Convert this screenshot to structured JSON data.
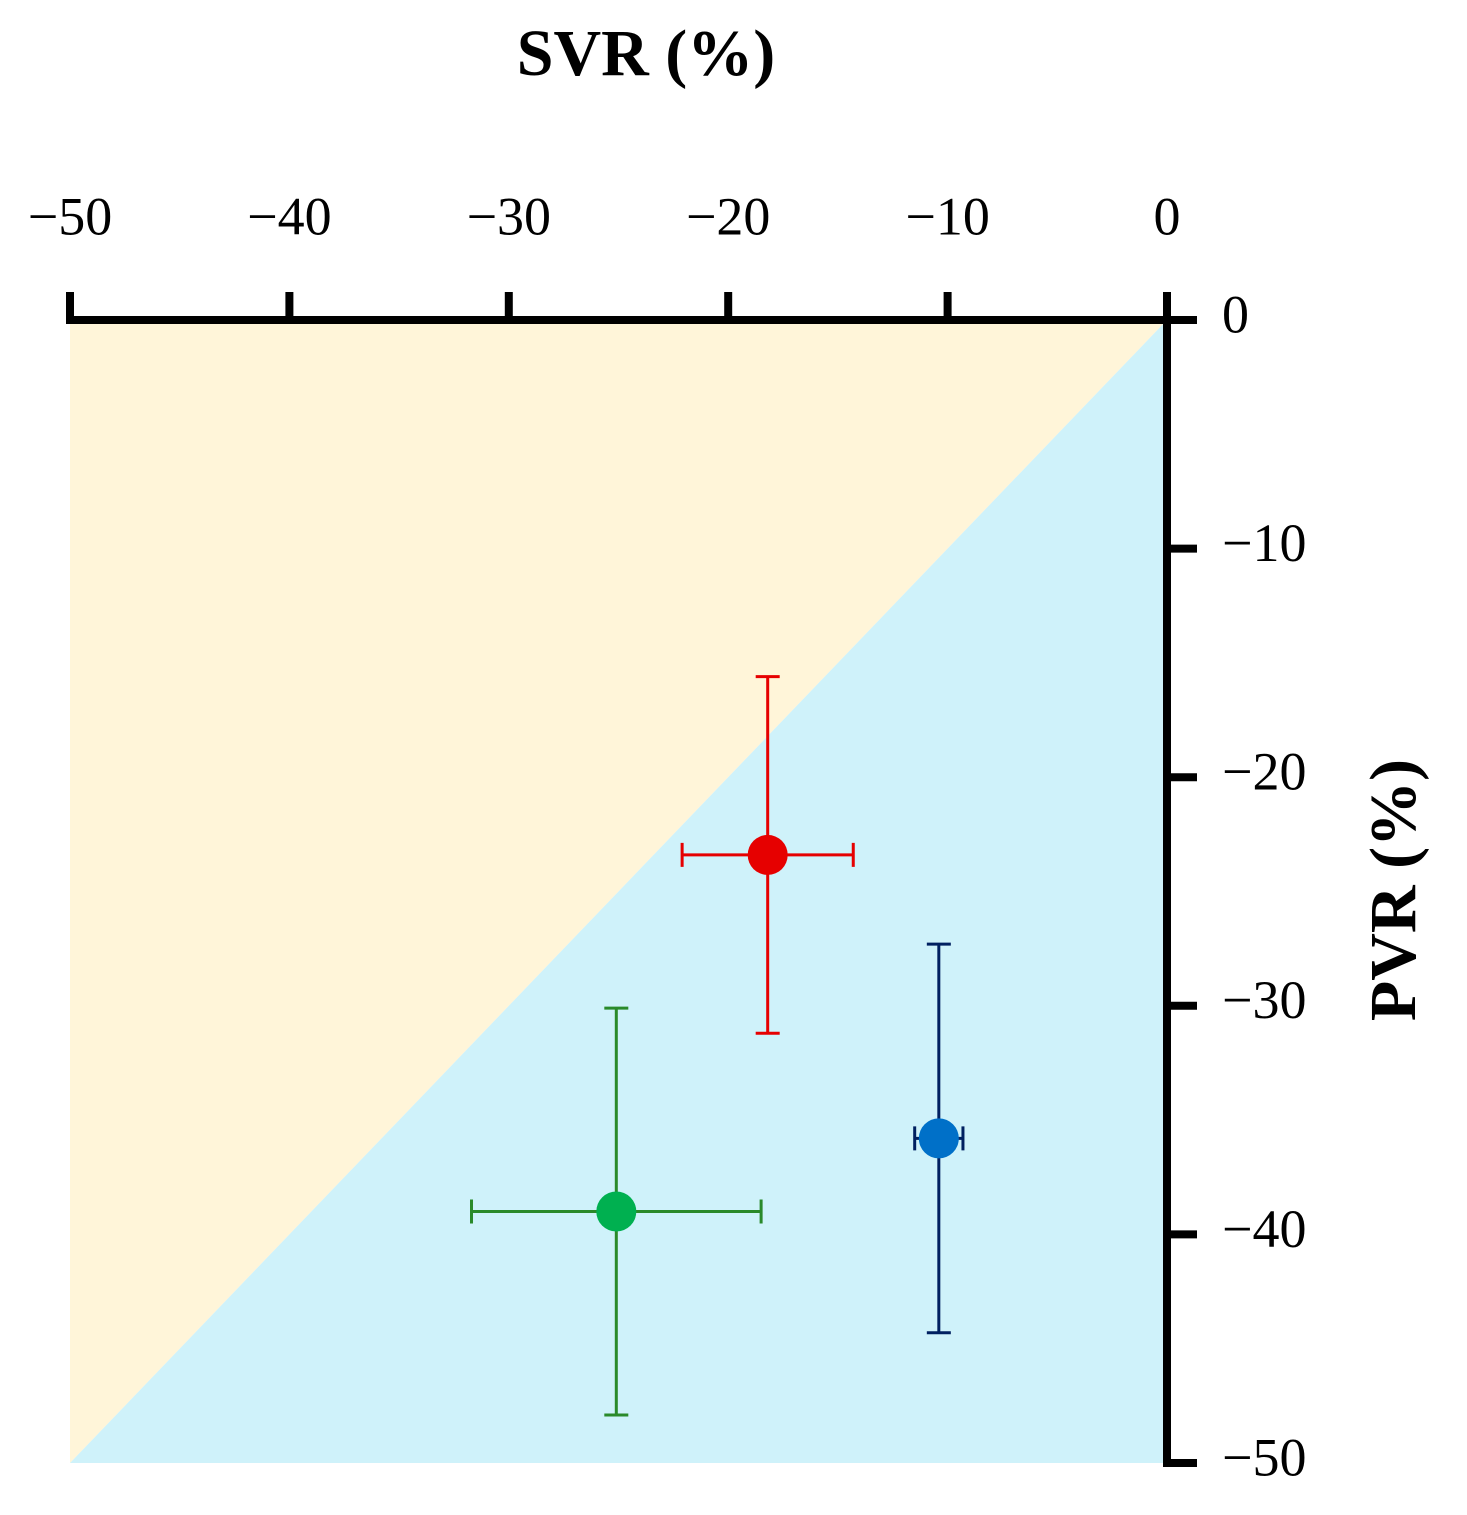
{
  "chart_data": {
    "type": "scatter",
    "xlabel": "SVR (%)",
    "ylabel": "PVR (%)",
    "xlim": [
      -50,
      0
    ],
    "ylim": [
      -50,
      0
    ],
    "xticks": [
      {
        "value": -50,
        "label": "−50"
      },
      {
        "value": -40,
        "label": "−40"
      },
      {
        "value": -30,
        "label": "−30"
      },
      {
        "value": -20,
        "label": "−20"
      },
      {
        "value": -10,
        "label": "−10"
      },
      0
    ],
    "yticks": [
      0,
      {
        "value": -10,
        "label": "−10"
      },
      {
        "value": -20,
        "label": "−20"
      },
      {
        "value": -30,
        "label": "−30"
      },
      {
        "value": -40,
        "label": "−40"
      },
      {
        "value": -50,
        "label": "−50"
      }
    ],
    "region_colors": [
      "#fff5d9",
      "#cff2fa"
    ],
    "series": [
      {
        "color": "#e60000",
        "error_color": "#e60000",
        "x": [
          -18.2
        ],
        "values": [
          -23.4
        ],
        "xerr": [
          3.9
        ],
        "yerr": [
          7.8
        ]
      },
      {
        "color": "#0070c8",
        "error_color": "#002060",
        "x": [
          -10.4
        ],
        "values": [
          -35.8
        ],
        "xerr": [
          1.1
        ],
        "yerr": [
          8.5
        ]
      },
      {
        "color": "#00b050",
        "error_color": "#2a8a2a",
        "x": [
          -25.1
        ],
        "values": [
          -39.0
        ],
        "xerr": [
          6.6
        ],
        "yerr": [
          8.9
        ]
      }
    ]
  }
}
